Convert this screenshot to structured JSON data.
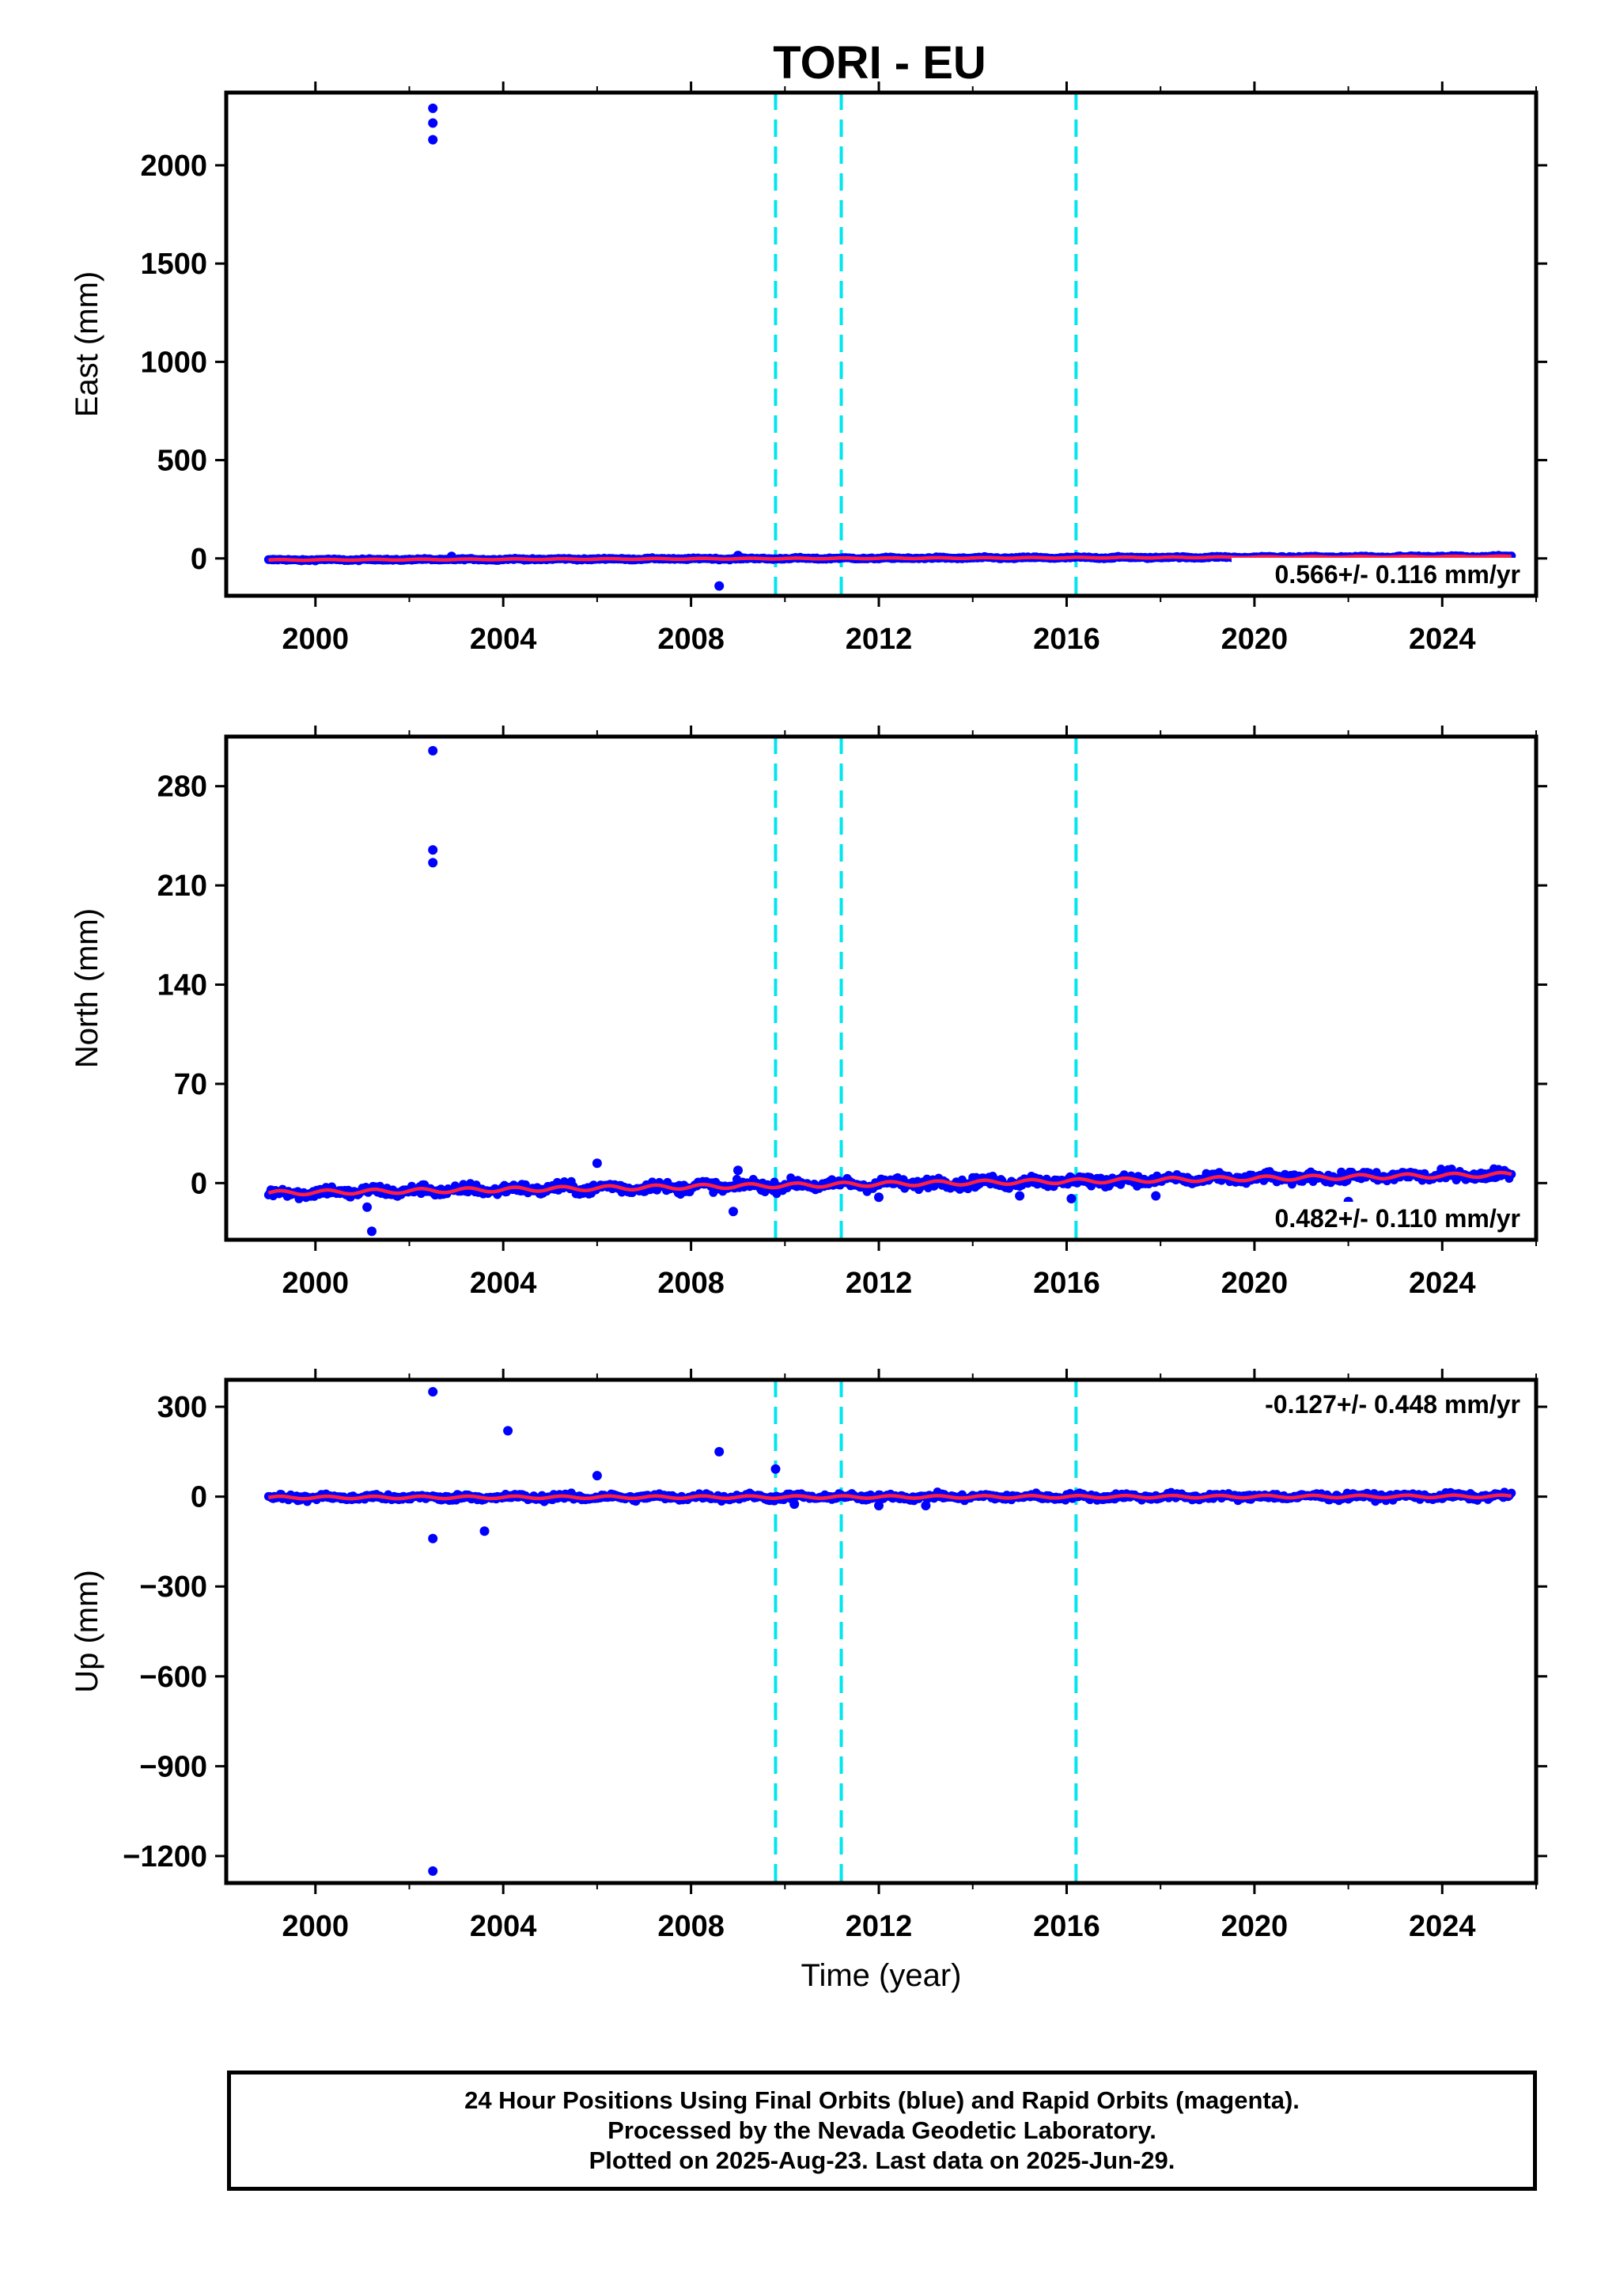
{
  "title": "TORI - EU",
  "colors": {
    "data_points": "#0000ff",
    "model_line": "#ff2040",
    "offset_lines": "#00e5ee",
    "frame": "#000000"
  },
  "chart_data": [
    {
      "type": "scatter",
      "component": "east",
      "ylabel": "East (mm)",
      "xlabel": "",
      "xlim": [
        1998.1,
        2026.0
      ],
      "ylim": [
        -190,
        2370
      ],
      "xticks": [
        2000,
        2004,
        2008,
        2012,
        2016,
        2020,
        2024
      ],
      "yticks": [
        0,
        500,
        1000,
        1500,
        2000
      ],
      "ytick_labels": [
        "0",
        "500",
        "1000",
        "1500",
        "2000"
      ],
      "rate_label": "0.566+/- 0.116 mm/yr",
      "rate_position": "bottom-right",
      "offset_years": [
        2009.8,
        2011.2,
        2016.2
      ],
      "series_span": [
        1999.0,
        2025.5
      ],
      "trend": {
        "start": -8,
        "end": 10
      },
      "noise": 3,
      "seasonal_amp": 2,
      "outliers": [
        [
          2002.5,
          2290
        ],
        [
          2002.5,
          2215
        ],
        [
          2002.5,
          2130
        ],
        [
          2008.6,
          -140
        ],
        [
          2002.9,
          10
        ],
        [
          2009.0,
          15
        ]
      ]
    },
    {
      "type": "scatter",
      "component": "north",
      "ylabel": "North (mm)",
      "xlabel": "",
      "xlim": [
        1998.1,
        2026.0
      ],
      "ylim": [
        -40,
        315
      ],
      "xticks": [
        2000,
        2004,
        2008,
        2012,
        2016,
        2020,
        2024
      ],
      "yticks": [
        0,
        70,
        140,
        210,
        280
      ],
      "ytick_labels": [
        "0",
        "70",
        "140",
        "210",
        "280"
      ],
      "rate_label": "0.482+/- 0.110 mm/yr",
      "rate_position": "bottom-right",
      "offset_years": [
        2009.8,
        2011.2,
        2016.2
      ],
      "series_span": [
        1999.0,
        2025.5
      ],
      "trend": {
        "start": -7,
        "end": 6
      },
      "noise": 2.5,
      "seasonal_amp": 1.5,
      "outliers": [
        [
          2002.5,
          305
        ],
        [
          2002.5,
          235
        ],
        [
          2002.5,
          226
        ],
        [
          2001.2,
          -34
        ],
        [
          2001.1,
          -17
        ],
        [
          2006.0,
          14
        ],
        [
          2008.9,
          -20
        ],
        [
          2009.0,
          9
        ],
        [
          2012.0,
          -10
        ],
        [
          2015.0,
          -9
        ],
        [
          2016.1,
          -11
        ],
        [
          2017.9,
          -9
        ],
        [
          2022.0,
          -13
        ]
      ]
    },
    {
      "type": "scatter",
      "component": "up",
      "ylabel": "Up (mm)",
      "xlabel": "Time (year)",
      "xlim": [
        1998.1,
        2026.0
      ],
      "ylim": [
        -1290,
        390
      ],
      "xticks": [
        2000,
        2004,
        2008,
        2012,
        2016,
        2020,
        2024
      ],
      "yticks": [
        -1200,
        -900,
        -600,
        -300,
        0,
        300
      ],
      "ytick_labels": [
        "−1200",
        "−900",
        "−600",
        "−300",
        "0",
        "300"
      ],
      "rate_label": "-0.127+/- 0.448 mm/yr",
      "rate_position": "top-right",
      "offset_years": [
        2009.8,
        2011.2,
        2016.2
      ],
      "series_span": [
        1999.0,
        2025.5
      ],
      "trend": {
        "start": -3,
        "end": 1
      },
      "noise": 7,
      "seasonal_amp": 4,
      "outliers": [
        [
          2002.5,
          350
        ],
        [
          2002.5,
          -140
        ],
        [
          2002.5,
          -1250
        ],
        [
          2004.1,
          220
        ],
        [
          2003.6,
          -115
        ],
        [
          2006.0,
          70
        ],
        [
          2008.6,
          150
        ],
        [
          2009.8,
          92
        ],
        [
          2010.2,
          -25
        ],
        [
          2012.0,
          -30
        ],
        [
          2013.0,
          -30
        ]
      ]
    }
  ],
  "footer": {
    "line1": "24 Hour Positions Using Final Orbits (blue) and Rapid Orbits (magenta).",
    "line2": "Processed by the Nevada Geodetic Laboratory.",
    "line3": "Plotted on 2025-Aug-23. Last data on 2025-Jun-29."
  }
}
